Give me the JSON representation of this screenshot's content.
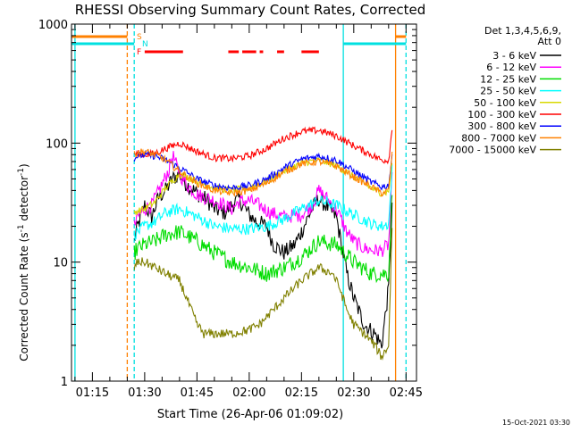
{
  "chart_data": {
    "type": "line",
    "title": "RHESSI Observing Summary Count Rates, Corrected",
    "xlabel": "Start Time (26-Apr-06 01:09:02)",
    "ylabel": "Corrected Count Rate (s⁻¹ detector⁻¹)",
    "ylabel_parts": {
      "main": "Corrected Count Rate (s",
      "sup1": "-1",
      "mid": " detector",
      "sup2": "-1",
      "end": ")"
    },
    "timestamp": "15-Oct-2021 03:30",
    "y_scale": "log",
    "ylim": [
      1,
      1000
    ],
    "xlim": [
      "01:09",
      "02:48"
    ],
    "y_ticks": [
      {
        "value": 1,
        "label": "1"
      },
      {
        "value": 10,
        "label": "10"
      },
      {
        "value": 100,
        "label": "100"
      },
      {
        "value": 1000,
        "label": "1000"
      }
    ],
    "x_ticks": [
      {
        "value": "01:15",
        "label": "01:15"
      },
      {
        "value": "01:30",
        "label": "01:30"
      },
      {
        "value": "01:45",
        "label": "01:45"
      },
      {
        "value": "02:00",
        "label": "02:00"
      },
      {
        "value": "02:15",
        "label": "02:15"
      },
      {
        "value": "02:30",
        "label": "02:30"
      },
      {
        "value": "02:45",
        "label": "02:45"
      }
    ],
    "legend": {
      "position": "right",
      "header": [
        "Det 1,3,4,5,6,9,",
        "Att 0"
      ],
      "entries": [
        {
          "label": "3 - 6 keV",
          "color": "#000000"
        },
        {
          "label": "6 - 12 keV",
          "color": "#ff00ff"
        },
        {
          "label": "12 - 25 keV",
          "color": "#00dd00"
        },
        {
          "label": "25 - 50 keV",
          "color": "#00ffff"
        },
        {
          "label": "50 - 100 keV",
          "color": "#d8d800"
        },
        {
          "label": "100 - 300 keV",
          "color": "#ff0000"
        },
        {
          "label": "300 - 800 keV",
          "color": "#0000ff"
        },
        {
          "label": "800 - 7000 keV",
          "color": "#ff8000"
        },
        {
          "label": "7000 - 15000 keV",
          "color": "#808000"
        }
      ]
    },
    "flags": [
      {
        "label": "S",
        "color": "#ff8000",
        "segments": [
          [
            "01:09",
            "01:25"
          ],
          [
            "02:42",
            "02:45"
          ]
        ]
      },
      {
        "label": "N",
        "color": "#00e0e0",
        "segments": [
          [
            "01:09",
            "01:27"
          ],
          [
            "02:27",
            "02:45"
          ]
        ]
      },
      {
        "label": "F",
        "color": "#ff0000",
        "dashed": true,
        "segments": [
          [
            "01:30",
            "01:41"
          ],
          [
            "01:54",
            "01:57"
          ],
          [
            "01:58",
            "02:02"
          ],
          [
            "02:03",
            "02:04"
          ],
          [
            "02:08",
            "02:10"
          ],
          [
            "02:15",
            "02:20"
          ]
        ]
      }
    ],
    "markers": [
      {
        "time": "01:10",
        "color": "#00e0e0",
        "style": "solid"
      },
      {
        "time": "01:25",
        "color": "#ff8000",
        "style": "dashed"
      },
      {
        "time": "01:27",
        "color": "#00e0e0",
        "style": "dashed"
      },
      {
        "time": "02:27",
        "color": "#00e0e0",
        "style": "solid"
      },
      {
        "time": "02:42",
        "color": "#ff8000",
        "style": "solid"
      },
      {
        "time": "02:45",
        "color": "#00e0e0",
        "style": "dashed"
      }
    ],
    "series": [
      {
        "name": "3 - 6 keV",
        "color": "#000000",
        "noise": 0.07,
        "x": [
          "01:27",
          "01:28",
          "01:30",
          "01:32",
          "01:34",
          "01:36",
          "01:38",
          "01:40",
          "01:42",
          "01:45",
          "01:48",
          "01:50",
          "01:53",
          "01:55",
          "01:57",
          "02:00",
          "02:02",
          "02:05",
          "02:07",
          "02:10",
          "02:13",
          "02:15",
          "02:18",
          "02:20",
          "02:22",
          "02:25",
          "02:28",
          "02:30",
          "02:33",
          "02:36",
          "02:38",
          "02:40",
          "02:41"
        ],
        "values": [
          15,
          20,
          30,
          24,
          35,
          40,
          50,
          55,
          45,
          38,
          33,
          28,
          26,
          30,
          34,
          25,
          22,
          20,
          14,
          12,
          14,
          18,
          28,
          34,
          30,
          24,
          8,
          5,
          3,
          2.5,
          2,
          6,
          30
        ]
      },
      {
        "name": "6 - 12 keV",
        "color": "#ff00ff",
        "noise": 0.06,
        "x": [
          "01:27",
          "01:28",
          "01:30",
          "01:32",
          "01:35",
          "01:37",
          "01:38",
          "01:40",
          "01:42",
          "01:45",
          "01:50",
          "01:55",
          "01:57",
          "02:00",
          "02:03",
          "02:06",
          "02:10",
          "02:15",
          "02:18",
          "02:20",
          "02:22",
          "02:25",
          "02:28",
          "02:30",
          "02:33",
          "02:36",
          "02:38",
          "02:40",
          "02:41"
        ],
        "values": [
          20,
          24,
          28,
          30,
          45,
          60,
          80,
          55,
          45,
          37,
          33,
          28,
          32,
          33,
          30,
          26,
          24,
          25,
          30,
          40,
          35,
          28,
          18,
          15,
          13,
          12.5,
          12.5,
          14,
          50
        ]
      },
      {
        "name": "12 - 25 keV",
        "color": "#00dd00",
        "noise": 0.07,
        "x": [
          "01:27",
          "01:28",
          "01:30",
          "01:33",
          "01:36",
          "01:40",
          "01:45",
          "01:50",
          "01:55",
          "02:00",
          "02:05",
          "02:10",
          "02:15",
          "02:20",
          "02:25",
          "02:30",
          "02:35",
          "02:38",
          "02:40",
          "02:41"
        ],
        "values": [
          12,
          13,
          14,
          15,
          17,
          18,
          15,
          12,
          10,
          9,
          8,
          9,
          11,
          15,
          14,
          10,
          8,
          8,
          8,
          40
        ]
      },
      {
        "name": "25 - 50 keV",
        "color": "#00ffff",
        "noise": 0.05,
        "x": [
          "01:27",
          "01:28",
          "01:30",
          "01:33",
          "01:36",
          "01:40",
          "01:45",
          "01:50",
          "01:55",
          "02:00",
          "02:05",
          "02:10",
          "02:15",
          "02:20",
          "02:25",
          "02:30",
          "02:35",
          "02:38",
          "02:40",
          "02:41"
        ],
        "values": [
          17,
          18,
          20,
          22,
          26,
          28,
          24,
          20,
          19,
          19,
          20,
          23,
          28,
          33,
          30,
          25,
          21,
          20,
          21,
          60
        ]
      },
      {
        "name": "50 - 100 keV",
        "color": "#d8d800",
        "noise": 0.03,
        "x": [
          "01:27",
          "01:28",
          "01:30",
          "01:33",
          "01:36",
          "01:40",
          "01:45",
          "01:50",
          "01:55",
          "02:00",
          "02:05",
          "02:10",
          "02:15",
          "02:20",
          "02:25",
          "02:30",
          "02:35",
          "02:38",
          "02:40",
          "02:41"
        ],
        "values": [
          26,
          27,
          28,
          32,
          42,
          55,
          48,
          42,
          40,
          42,
          48,
          58,
          68,
          72,
          65,
          52,
          42,
          38,
          39,
          70
        ]
      },
      {
        "name": "100 - 300 keV",
        "color": "#ff0000",
        "noise": 0.03,
        "x": [
          "01:27",
          "01:28",
          "01:30",
          "01:33",
          "01:36",
          "01:40",
          "01:45",
          "01:50",
          "01:55",
          "02:00",
          "02:05",
          "02:10",
          "02:15",
          "02:20",
          "02:25",
          "02:30",
          "02:35",
          "02:38",
          "02:40",
          "02:41"
        ],
        "values": [
          80,
          82,
          80,
          82,
          90,
          100,
          85,
          75,
          74,
          78,
          90,
          110,
          125,
          128,
          115,
          95,
          80,
          72,
          72,
          130
        ]
      },
      {
        "name": "300 - 800 keV",
        "color": "#0000ff",
        "noise": 0.03,
        "x": [
          "01:27",
          "01:28",
          "01:30",
          "01:33",
          "01:36",
          "01:40",
          "01:45",
          "01:50",
          "01:55",
          "02:00",
          "02:05",
          "02:10",
          "02:15",
          "02:20",
          "02:25",
          "02:30",
          "02:35",
          "02:38",
          "02:40",
          "02:41"
        ],
        "values": [
          75,
          78,
          80,
          78,
          72,
          62,
          50,
          44,
          42,
          44,
          50,
          62,
          73,
          78,
          72,
          58,
          47,
          43,
          44,
          80
        ]
      },
      {
        "name": "800 - 7000 keV",
        "color": "#ff8000",
        "noise": 0.03,
        "x": [
          "01:27",
          "01:28",
          "01:30",
          "01:33",
          "01:36",
          "01:40",
          "01:45",
          "01:50",
          "01:55",
          "02:00",
          "02:05",
          "02:10",
          "02:15",
          "02:20",
          "02:25",
          "02:30",
          "02:35",
          "02:38",
          "02:40",
          "02:41"
        ],
        "values": [
          80,
          84,
          85,
          80,
          72,
          58,
          46,
          40,
          38,
          40,
          46,
          57,
          67,
          70,
          64,
          52,
          43,
          38,
          40,
          80
        ]
      },
      {
        "name": "7000 - 15000 keV",
        "color": "#808000",
        "noise": 0.04,
        "x": [
          "01:27",
          "01:28",
          "01:30",
          "01:33",
          "01:36",
          "01:40",
          "01:42",
          "01:45",
          "01:47",
          "01:50",
          "01:55",
          "02:00",
          "02:03",
          "02:07",
          "02:10",
          "02:15",
          "02:20",
          "02:24",
          "02:26",
          "02:28",
          "02:30",
          "02:33",
          "02:36",
          "02:38",
          "02:40",
          "02:41"
        ],
        "values": [
          9,
          10,
          10,
          9,
          8,
          7,
          5,
          3,
          2.5,
          2.5,
          2.5,
          2.7,
          3,
          4,
          5,
          7,
          9,
          8,
          6,
          4,
          3,
          2.5,
          2,
          1.6,
          2,
          20
        ]
      }
    ]
  }
}
